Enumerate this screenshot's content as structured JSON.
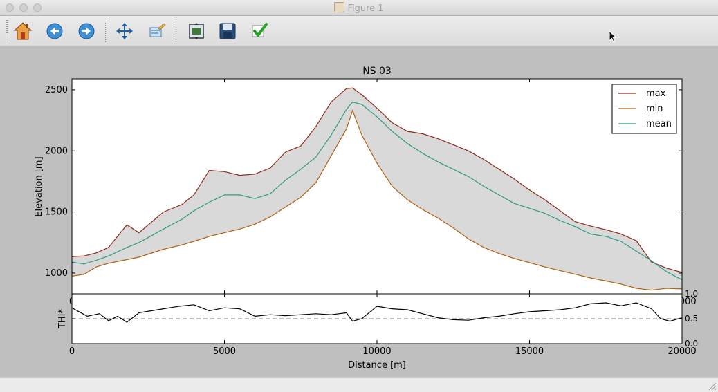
{
  "window": {
    "title": "Figure 1"
  },
  "toolbar": {
    "buttons": [
      {
        "name": "home",
        "icon": "home-icon"
      },
      {
        "name": "back",
        "icon": "back-arrow-icon"
      },
      {
        "name": "forward",
        "icon": "forward-arrow-icon"
      },
      {
        "name": "pan",
        "icon": "pan-move-icon"
      },
      {
        "name": "zoom",
        "icon": "zoom-rect-icon"
      },
      {
        "name": "configure-subplots",
        "icon": "subplots-icon"
      },
      {
        "name": "save",
        "icon": "save-disk-icon"
      },
      {
        "name": "edit-parameters",
        "icon": "checkmark-icon"
      }
    ]
  },
  "chart_data": [
    {
      "type": "line",
      "title": "NS 03",
      "xlabel": "",
      "ylabel": "Elevation [m]",
      "xlim": [
        0,
        20000
      ],
      "ylim": [
        830,
        2590
      ],
      "yticks": [
        "1000",
        "1500",
        "2000",
        "2500"
      ],
      "xticks_visible_fragment": [
        "0",
        "20000"
      ],
      "x": [
        0,
        400,
        800,
        1200,
        1800,
        2200,
        3000,
        3600,
        4000,
        4500,
        5000,
        5500,
        6000,
        6500,
        7000,
        7500,
        8000,
        8500,
        9000,
        9200,
        9500,
        10000,
        10500,
        11000,
        11500,
        12000,
        12500,
        13000,
        13500,
        14000,
        14500,
        15000,
        15500,
        16000,
        16500,
        17000,
        17500,
        18000,
        18500,
        19000,
        19500,
        20000
      ],
      "series": [
        {
          "name": "max",
          "color": "#8b2a18",
          "values": [
            1135,
            1140,
            1165,
            1210,
            1395,
            1330,
            1500,
            1560,
            1640,
            1840,
            1830,
            1800,
            1810,
            1860,
            1990,
            2040,
            2200,
            2400,
            2510,
            2515,
            2460,
            2350,
            2230,
            2160,
            2140,
            2100,
            2050,
            2000,
            1930,
            1850,
            1770,
            1680,
            1600,
            1510,
            1420,
            1385,
            1355,
            1320,
            1265,
            1090,
            1040,
            1005
          ]
        },
        {
          "name": "min",
          "color": "#b06010",
          "values": [
            975,
            990,
            1050,
            1080,
            1110,
            1130,
            1195,
            1230,
            1260,
            1300,
            1330,
            1360,
            1400,
            1460,
            1540,
            1620,
            1740,
            1960,
            2180,
            2330,
            2130,
            1900,
            1710,
            1600,
            1520,
            1450,
            1370,
            1280,
            1210,
            1160,
            1120,
            1085,
            1050,
            1020,
            990,
            960,
            935,
            910,
            875,
            860,
            875,
            870
          ]
        },
        {
          "name": "mean",
          "color": "#2e9a80",
          "values": [
            1090,
            1075,
            1105,
            1140,
            1210,
            1250,
            1360,
            1440,
            1510,
            1580,
            1640,
            1640,
            1610,
            1650,
            1760,
            1850,
            1950,
            2130,
            2340,
            2400,
            2380,
            2280,
            2160,
            2060,
            1980,
            1910,
            1850,
            1790,
            1710,
            1640,
            1570,
            1530,
            1490,
            1430,
            1380,
            1320,
            1300,
            1260,
            1180,
            1100,
            1010,
            945
          ]
        }
      ],
      "fill_between": {
        "lower": "min",
        "upper": "max",
        "color": "#d9d9d9"
      },
      "legend": {
        "position": "top-right",
        "entries": [
          "max",
          "min",
          "mean"
        ]
      }
    },
    {
      "type": "line",
      "title": "",
      "xlabel": "Distance [m]",
      "ylabel": "THI*",
      "xlim": [
        0,
        20000
      ],
      "ylim": [
        0,
        1
      ],
      "xticks": [
        "0",
        "5000",
        "10000",
        "15000",
        "20000"
      ],
      "yticks": [
        "0.0",
        "0.5",
        "1.0"
      ],
      "reference_line": {
        "y": 0.5,
        "style": "dashed"
      },
      "x": [
        0,
        500,
        900,
        1200,
        1500,
        1800,
        2200,
        2600,
        3000,
        3500,
        4000,
        4500,
        5000,
        5500,
        6000,
        6500,
        7000,
        7500,
        8000,
        8500,
        9000,
        9200,
        9500,
        10000,
        10500,
        11000,
        11500,
        12000,
        12500,
        13000,
        13500,
        14000,
        14500,
        15000,
        15500,
        16000,
        16500,
        17000,
        17500,
        18000,
        18500,
        19000,
        19300,
        19600,
        20000
      ],
      "values": [
        0.72,
        0.55,
        0.6,
        0.46,
        0.55,
        0.43,
        0.62,
        0.66,
        0.7,
        0.75,
        0.78,
        0.66,
        0.72,
        0.7,
        0.55,
        0.58,
        0.56,
        0.58,
        0.6,
        0.58,
        0.62,
        0.45,
        0.5,
        0.75,
        0.7,
        0.68,
        0.6,
        0.52,
        0.48,
        0.47,
        0.52,
        0.55,
        0.6,
        0.64,
        0.66,
        0.68,
        0.72,
        0.8,
        0.82,
        0.76,
        0.82,
        0.7,
        0.5,
        0.45,
        0.52
      ]
    }
  ]
}
